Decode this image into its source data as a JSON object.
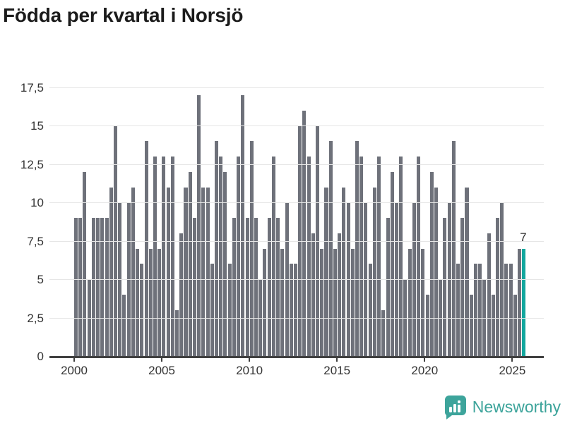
{
  "title": "Födda per kvartal i Norsjö",
  "annotation": {
    "last_value_label": "7"
  },
  "y_axis": {
    "ticks": [
      0,
      2.5,
      5,
      7.5,
      10,
      12.5,
      15,
      17.5
    ],
    "tick_labels": [
      "0",
      "2,5",
      "5",
      "7,5",
      "10",
      "12,5",
      "15",
      "17,5"
    ]
  },
  "x_axis": {
    "tick_years": [
      2000,
      2005,
      2010,
      2015,
      2020,
      2025
    ],
    "tick_labels": [
      "2000",
      "2005",
      "2010",
      "2015",
      "2020",
      "2025"
    ]
  },
  "colors": {
    "bar": "#6e717a",
    "highlight": "#13a79e",
    "gridline": "#e6e6e6",
    "axis": "#404040",
    "logo": "#3da49b"
  },
  "logo": {
    "text": "Newsworthy",
    "icon": "bar-chart-speech-bubble"
  },
  "chart_data": {
    "type": "bar",
    "title": "Födda per kvartal i Norsjö",
    "x_unit": "quarter",
    "ylim": [
      0,
      17.5
    ],
    "grid": "horizontal",
    "highlight": {
      "index_from_end": 1,
      "value": 7,
      "label": "7"
    },
    "series_by_year": [
      {
        "year": 2000,
        "values": [
          9,
          9,
          12,
          5
        ]
      },
      {
        "year": 2001,
        "values": [
          9,
          9,
          9,
          9
        ]
      },
      {
        "year": 2002,
        "values": [
          11,
          15,
          10,
          4
        ]
      },
      {
        "year": 2003,
        "values": [
          10,
          11,
          7,
          6
        ]
      },
      {
        "year": 2004,
        "values": [
          14,
          7,
          13,
          7
        ]
      },
      {
        "year": 2005,
        "values": [
          13,
          11,
          13,
          3
        ]
      },
      {
        "year": 2006,
        "values": [
          8,
          11,
          12,
          9
        ]
      },
      {
        "year": 2007,
        "values": [
          17,
          11,
          11,
          6
        ]
      },
      {
        "year": 2008,
        "values": [
          14,
          13,
          12,
          6
        ]
      },
      {
        "year": 2009,
        "values": [
          9,
          13,
          17,
          9
        ]
      },
      {
        "year": 2010,
        "values": [
          14,
          9,
          5,
          7
        ]
      },
      {
        "year": 2011,
        "values": [
          9,
          13,
          9,
          7
        ]
      },
      {
        "year": 2012,
        "values": [
          10,
          6,
          6,
          15
        ]
      },
      {
        "year": 2013,
        "values": [
          16,
          13,
          8,
          15
        ]
      },
      {
        "year": 2014,
        "values": [
          7,
          11,
          14,
          7
        ]
      },
      {
        "year": 2015,
        "values": [
          8,
          11,
          10,
          7
        ]
      },
      {
        "year": 2016,
        "values": [
          14,
          13,
          10,
          6
        ]
      },
      {
        "year": 2017,
        "values": [
          11,
          13,
          3,
          9
        ]
      },
      {
        "year": 2018,
        "values": [
          12,
          10,
          13,
          5
        ]
      },
      {
        "year": 2019,
        "values": [
          7,
          10,
          13,
          7
        ]
      },
      {
        "year": 2020,
        "values": [
          4,
          12,
          11,
          5
        ]
      },
      {
        "year": 2021,
        "values": [
          9,
          10,
          14,
          6
        ]
      },
      {
        "year": 2022,
        "values": [
          9,
          11,
          4,
          6
        ]
      },
      {
        "year": 2023,
        "values": [
          6,
          5,
          8,
          4
        ]
      },
      {
        "year": 2024,
        "values": [
          9,
          10,
          6,
          6
        ]
      },
      {
        "year": 2025,
        "values": [
          4,
          7,
          7
        ]
      }
    ]
  }
}
